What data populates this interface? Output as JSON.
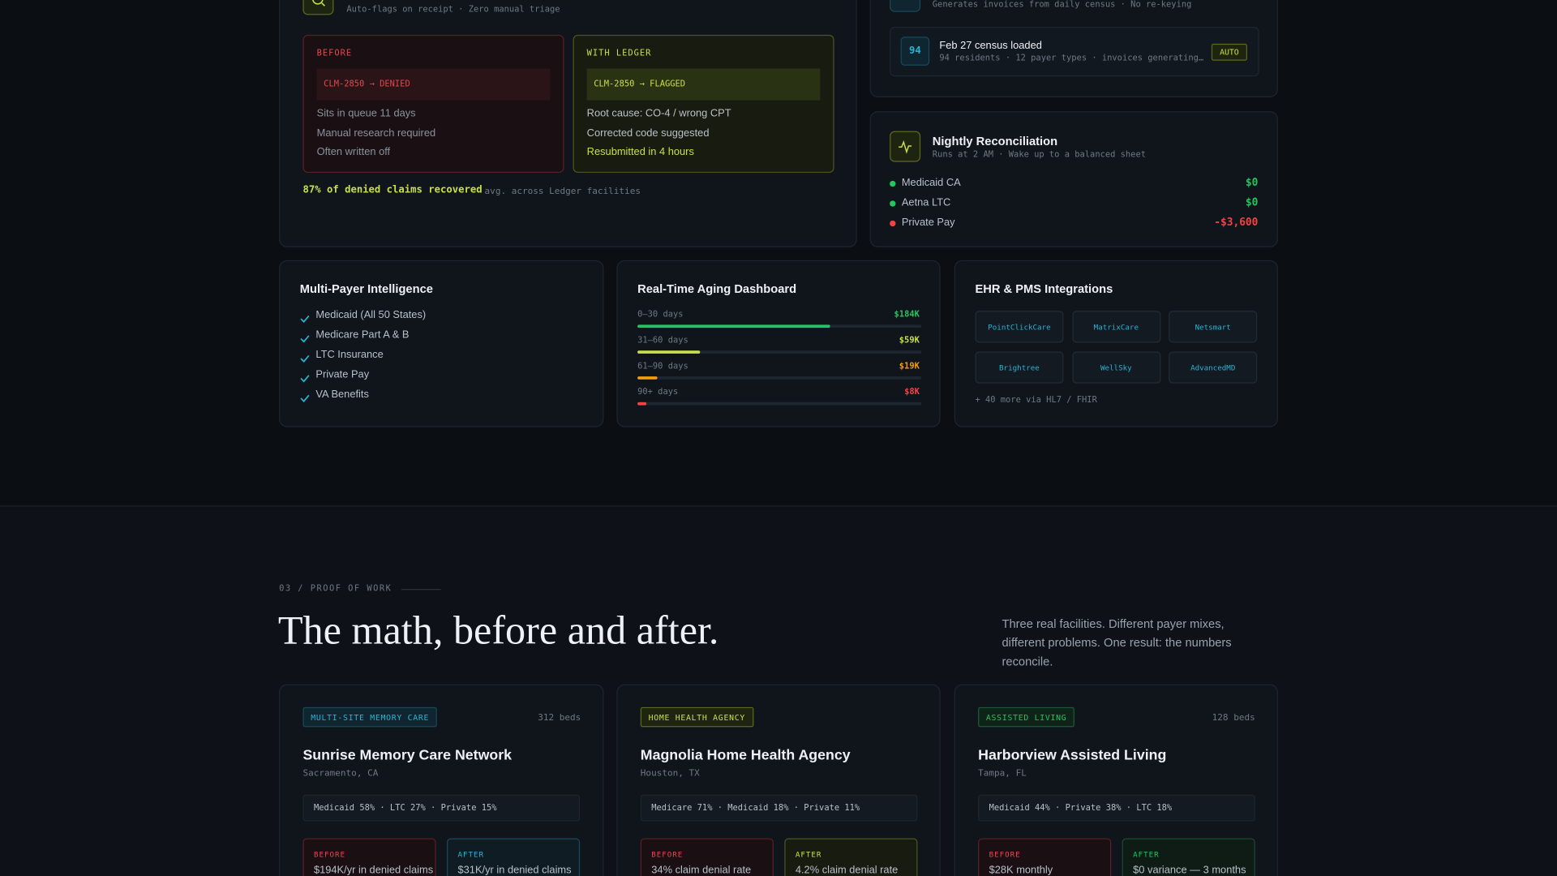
{
  "top": {
    "claims_card": {
      "subtitle": "Auto-flags on receipt · Zero manual triage",
      "before": {
        "label": "BEFORE",
        "claim": "CLM-2850 → DENIED",
        "items": [
          "Sits in queue 11 days",
          "Manual research required",
          "Often written off"
        ]
      },
      "after": {
        "label": "WITH LEDGER",
        "claim": "CLM-2850 → FLAGGED",
        "items": [
          "Root cause: CO-4 / wrong CPT",
          "Corrected code suggested",
          "Resubmitted in 4 hours"
        ]
      },
      "stat": "87% of denied claims recovered",
      "stat_note": "avg. across Ledger facilities"
    },
    "billing_card": {
      "subtitle": "Generates invoices from daily census · No re-keying",
      "row": {
        "count": "94",
        "title": "Feb 27 census loaded",
        "detail": "94 residents · 12 payer types · invoices generating…",
        "tag": "AUTO"
      }
    },
    "reconciliation": {
      "title": "Nightly Reconciliation",
      "subtitle": "Runs at 2 AM · Wake up to a balanced sheet",
      "rows": [
        {
          "name": "Medicaid CA",
          "amount": "$0"
        },
        {
          "name": "Aetna LTC",
          "amount": "$0"
        },
        {
          "name": "Private Pay",
          "amount": "-$3,600"
        }
      ]
    }
  },
  "features": {
    "payers": {
      "title": "Multi-Payer Intelligence",
      "items": [
        "Medicaid (All 50 States)",
        "Medicare Part A & B",
        "LTC Insurance",
        "Private Pay",
        "VA Benefits"
      ]
    },
    "aging": {
      "title": "Real-Time Aging Dashboard",
      "rows": [
        {
          "label": "0–30 days",
          "amount": "$184K"
        },
        {
          "label": "31–60 days",
          "amount": "$59K"
        },
        {
          "label": "61–90 days",
          "amount": "$19K"
        },
        {
          "label": "90+ days",
          "amount": "$8K"
        }
      ]
    },
    "integrations": {
      "title": "EHR & PMS Integrations",
      "items": [
        "PointClickCare",
        "MatrixCare",
        "Netsmart",
        "Brightree",
        "WellSky",
        "AdvancedMD"
      ],
      "note": "+ 40 more via HL7 / FHIR"
    }
  },
  "proof": {
    "eyebrow": "03 / PROOF OF WORK",
    "heading": "The math, before and after.",
    "intro": "Three real facilities. Different payer mixes, different problems. One result: the numbers reconcile.",
    "cases": [
      {
        "tag": "MULTI-SITE MEMORY CARE",
        "beds": "312 beds",
        "name": "Sunrise Memory Care Network",
        "location": "Sacramento, CA",
        "mix": "Medicaid 58% · LTC 27% · Private 15%",
        "before": {
          "label": "BEFORE",
          "text": "$194K/yr in denied claims"
        },
        "after": {
          "label": "AFTER",
          "text": "$31K/yr in denied claims"
        }
      },
      {
        "tag": "HOME HEALTH AGENCY",
        "beds": "",
        "name": "Magnolia Home Health Agency",
        "location": "Houston, TX",
        "mix": "Medicare 71% · Medicaid 18% · Private 11%",
        "before": {
          "label": "BEFORE",
          "text": "34% claim denial rate"
        },
        "after": {
          "label": "AFTER",
          "text": "4.2% claim denial rate"
        }
      },
      {
        "tag": "ASSISTED LIVING",
        "beds": "128 beds",
        "name": "Harborview Assisted Living",
        "location": "Tampa, FL",
        "mix": "Medicaid 44% · Private 38% · LTC 18%",
        "before": {
          "label": "BEFORE",
          "text": "$28K monthly"
        },
        "after": {
          "label": "AFTER",
          "text": "$0 variance — 3 months"
        }
      }
    ]
  }
}
